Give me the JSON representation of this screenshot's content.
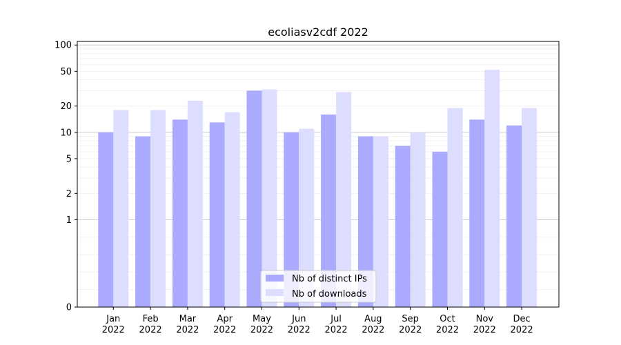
{
  "chart_data": {
    "type": "bar",
    "title": "ecoliasv2cdf 2022",
    "xlabel": "",
    "ylabel": "",
    "y_scale": "symlog",
    "y_ticks": [
      0,
      1,
      2,
      5,
      10,
      20,
      50,
      100
    ],
    "y_tick_labels": [
      "0",
      "1",
      "2",
      "5",
      "10",
      "20",
      "50",
      "100"
    ],
    "ylim": [
      0,
      110
    ],
    "grid": true,
    "legend_position": "bottom-center",
    "categories": [
      [
        "Jan",
        "2022"
      ],
      [
        "Feb",
        "2022"
      ],
      [
        "Mar",
        "2022"
      ],
      [
        "Apr",
        "2022"
      ],
      [
        "May",
        "2022"
      ],
      [
        "Jun",
        "2022"
      ],
      [
        "Jul",
        "2022"
      ],
      [
        "Aug",
        "2022"
      ],
      [
        "Sep",
        "2022"
      ],
      [
        "Oct",
        "2022"
      ],
      [
        "Nov",
        "2022"
      ],
      [
        "Dec",
        "2022"
      ]
    ],
    "series": [
      {
        "name": "Nb of distinct IPs",
        "color": "#aaaaff",
        "values": [
          10,
          9,
          14,
          13,
          30,
          10,
          16,
          9,
          7,
          6,
          14,
          12
        ]
      },
      {
        "name": "Nb of downloads",
        "color": "#ddddff",
        "values": [
          18,
          18,
          23,
          17,
          31,
          11,
          29,
          9,
          10,
          19,
          52,
          19
        ]
      }
    ]
  }
}
